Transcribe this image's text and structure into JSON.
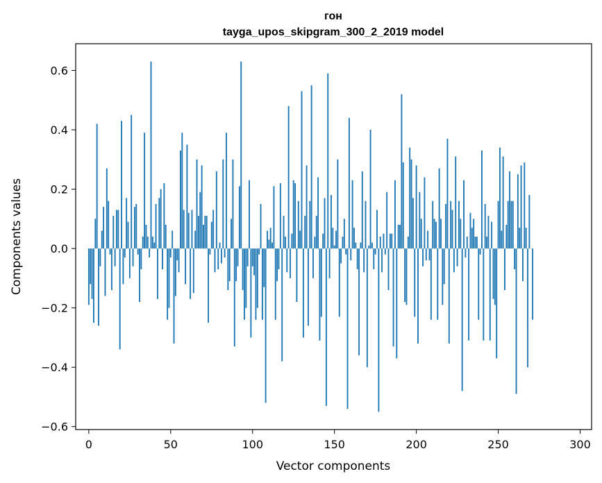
{
  "chart_data": {
    "type": "bar",
    "title": "гон",
    "subtitle": "tayga_upos_skipgram_300_2_2019 model",
    "xlabel": "Vector components",
    "ylabel": "Components values",
    "xlim": [
      -8,
      307
    ],
    "ylim": [
      -0.61,
      0.69
    ],
    "xticks": [
      0,
      50,
      100,
      150,
      200,
      250,
      300
    ],
    "yticks": [
      -0.6,
      -0.4,
      -0.2,
      0.0,
      0.2,
      0.4,
      0.6
    ],
    "ytick_labels": [
      "−0.6",
      "−0.4",
      "−0.2",
      "0.0",
      "0.2",
      "0.4",
      "0.6"
    ],
    "bar_color": "#1f77b4",
    "values": [
      -0.19,
      -0.12,
      -0.17,
      -0.25,
      0.1,
      0.42,
      -0.26,
      -0.06,
      0.06,
      0.14,
      -0.16,
      0.27,
      0.16,
      -0.02,
      -0.14,
      0.11,
      -0.06,
      0.13,
      0.13,
      -0.34,
      0.43,
      -0.12,
      -0.03,
      0.17,
      0.09,
      -0.1,
      0.45,
      -0.06,
      0.14,
      0.15,
      -0.02,
      -0.18,
      -0.07,
      0.04,
      0.39,
      0.08,
      0.04,
      -0.03,
      0.63,
      0.04,
      0.02,
      0.15,
      -0.17,
      0.17,
      0.2,
      -0.07,
      0.22,
      0.08,
      -0.24,
      -0.2,
      -0.03,
      0.06,
      -0.32,
      -0.16,
      -0.04,
      -0.08,
      0.33,
      0.39,
      0.13,
      -0.12,
      0.35,
      0.12,
      -0.17,
      0.13,
      -0.15,
      0.06,
      0.3,
      0.11,
      0.19,
      0.28,
      0.08,
      0.11,
      0.11,
      -0.25,
      -0.02,
      0.09,
      0.13,
      -0.08,
      0.26,
      -0.07,
      0.02,
      -0.05,
      0.3,
      -0.03,
      0.39,
      -0.14,
      -0.11,
      0.1,
      0.3,
      -0.33,
      -0.11,
      -0.06,
      0.21,
      0.63,
      -0.14,
      -0.24,
      -0.2,
      -0.06,
      0.23,
      -0.3,
      -0.06,
      -0.09,
      -0.24,
      -0.2,
      -0.02,
      0.15,
      -0.24,
      -0.13,
      -0.52,
      0.06,
      0.03,
      0.07,
      0.02,
      0.21,
      -0.24,
      -0.11,
      -0.07,
      0.22,
      -0.38,
      0.11,
      0.04,
      -0.08,
      0.48,
      -0.1,
      0.05,
      0.23,
      0.22,
      -0.18,
      0.16,
      0.06,
      0.53,
      -0.3,
      0.11,
      0.28,
      -0.26,
      0.16,
      0.55,
      -0.1,
      0.04,
      0.11,
      0.24,
      -0.31,
      -0.23,
      0.05,
      0.17,
      -0.53,
      0.59,
      -0.1,
      0.18,
      0.07,
      0.01,
      0.06,
      0.3,
      -0.23,
      -0.05,
      0.04,
      0.1,
      -0.02,
      -0.54,
      0.44,
      -0.04,
      0.23,
      0.07,
      0.02,
      -0.07,
      -0.36,
      0.02,
      0.26,
      -0.08,
      0.16,
      -0.4,
      0.01,
      0.4,
      0.02,
      -0.07,
      -0.02,
      0.13,
      -0.55,
      0.04,
      -0.08,
      0.05,
      -0.02,
      0.19,
      -0.14,
      0.05,
      0.05,
      -0.33,
      0.23,
      -0.37,
      0.08,
      0.08,
      0.52,
      0.29,
      -0.18,
      -0.19,
      0.04,
      0.34,
      0.3,
      0.17,
      -0.23,
      0.28,
      -0.32,
      0.19,
      0.1,
      -0.06,
      0.24,
      -0.04,
      0.06,
      -0.04,
      -0.24,
      0.16,
      0.1,
      0.09,
      -0.24,
      0.27,
      0.1,
      -0.19,
      -0.12,
      0.15,
      0.37,
      -0.32,
      0.16,
      0.13,
      -0.08,
      0.31,
      -0.06,
      0.16,
      0.1,
      -0.48,
      0.23,
      -0.03,
      0.04,
      -0.31,
      0.12,
      0.07,
      0.1,
      0.04,
      0.04,
      -0.24,
      -0.02,
      0.33,
      -0.31,
      0.15,
      0.04,
      0.11,
      -0.31,
      0.09,
      -0.17,
      -0.19,
      -0.37,
      0.16,
      0.34,
      0.06,
      0.31,
      -0.14,
      0.08,
      0.16,
      0.26,
      0.16,
      0.16,
      -0.07,
      -0.49,
      0.25,
      0.07,
      0.28,
      -0.11,
      0.29,
      0.07,
      -0.4,
      0.18,
      0.0,
      -0.24
    ]
  }
}
